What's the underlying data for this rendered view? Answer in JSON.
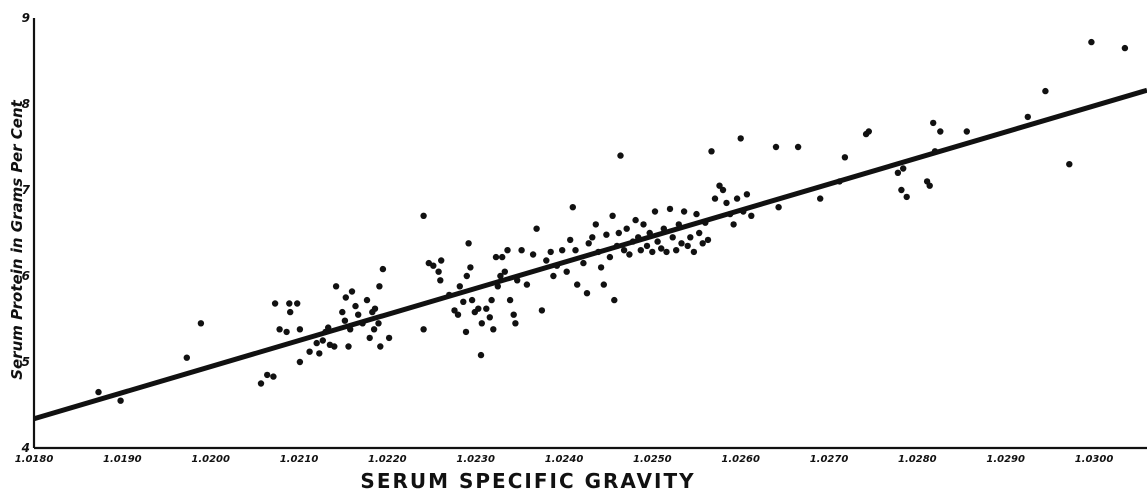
{
  "chart_data": {
    "type": "scatter",
    "title": "",
    "xlabel": "SERUM SPECIFIC GRAVITY",
    "ylabel": "Serum Protein in Grams Per Cent",
    "xlim": [
      1.018,
      1.0306
    ],
    "ylim": [
      4,
      9
    ],
    "x_ticks": [
      "1.0180",
      "1.0190",
      "1.0200",
      "1.0210",
      "1.0220",
      "1.0230",
      "1.0240",
      "1.0250",
      "1.0260",
      "1.0270",
      "1.0280",
      "1.0290",
      "1.0300"
    ],
    "y_ticks": [
      "4",
      "5",
      "6",
      "7",
      "8",
      "9"
    ],
    "grid": false,
    "trend_line": {
      "x": [
        1.018,
        1.0306
      ],
      "y": [
        4.34,
        8.16
      ]
    },
    "points": [
      [
        1.01873,
        4.65
      ],
      [
        1.01898,
        4.55
      ],
      [
        1.01973,
        5.05
      ],
      [
        1.01989,
        5.45
      ],
      [
        1.02057,
        4.75
      ],
      [
        1.02064,
        4.85
      ],
      [
        1.02071,
        4.83
      ],
      [
        1.02073,
        5.68
      ],
      [
        1.02078,
        5.38
      ],
      [
        1.02086,
        5.35
      ],
      [
        1.02089,
        5.68
      ],
      [
        1.0209,
        5.58
      ],
      [
        1.02098,
        5.68
      ],
      [
        1.02101,
        5.38
      ],
      [
        1.02101,
        5.0
      ],
      [
        1.02112,
        5.12
      ],
      [
        1.0212,
        5.22
      ],
      [
        1.02123,
        5.1
      ],
      [
        1.02127,
        5.25
      ],
      [
        1.0213,
        5.35
      ],
      [
        1.02133,
        5.4
      ],
      [
        1.02135,
        5.2
      ],
      [
        1.0214,
        5.18
      ],
      [
        1.02142,
        5.88
      ],
      [
        1.02149,
        5.58
      ],
      [
        1.02152,
        5.48
      ],
      [
        1.02153,
        5.75
      ],
      [
        1.02156,
        5.18
      ],
      [
        1.02158,
        5.38
      ],
      [
        1.0216,
        5.82
      ],
      [
        1.02164,
        5.65
      ],
      [
        1.02167,
        5.55
      ],
      [
        1.02172,
        5.45
      ],
      [
        1.02177,
        5.72
      ],
      [
        1.0218,
        5.28
      ],
      [
        1.02183,
        5.58
      ],
      [
        1.02185,
        5.38
      ],
      [
        1.02186,
        5.62
      ],
      [
        1.0219,
        5.45
      ],
      [
        1.02191,
        5.88
      ],
      [
        1.02192,
        5.18
      ],
      [
        1.02195,
        6.08
      ],
      [
        1.02202,
        5.28
      ],
      [
        1.02241,
        6.7
      ],
      [
        1.02241,
        5.38
      ],
      [
        1.02247,
        6.15
      ],
      [
        1.02252,
        6.12
      ],
      [
        1.02258,
        6.05
      ],
      [
        1.0226,
        5.95
      ],
      [
        1.02261,
        6.18
      ],
      [
        1.0227,
        5.78
      ],
      [
        1.02276,
        5.6
      ],
      [
        1.0228,
        5.55
      ],
      [
        1.02282,
        5.88
      ],
      [
        1.02286,
        5.7
      ],
      [
        1.02289,
        5.35
      ],
      [
        1.0229,
        6.0
      ],
      [
        1.02292,
        6.38
      ],
      [
        1.02294,
        6.1
      ],
      [
        1.02296,
        5.72
      ],
      [
        1.02299,
        5.58
      ],
      [
        1.02303,
        5.62
      ],
      [
        1.02306,
        5.08
      ],
      [
        1.02307,
        5.45
      ],
      [
        1.02312,
        5.62
      ],
      [
        1.02316,
        5.52
      ],
      [
        1.02318,
        5.72
      ],
      [
        1.0232,
        5.38
      ],
      [
        1.02323,
        6.22
      ],
      [
        1.02325,
        5.88
      ],
      [
        1.02328,
        6.0
      ],
      [
        1.0233,
        6.22
      ],
      [
        1.02333,
        6.05
      ],
      [
        1.02336,
        6.3
      ],
      [
        1.02339,
        5.72
      ],
      [
        1.02343,
        5.55
      ],
      [
        1.02345,
        5.45
      ],
      [
        1.02347,
        5.95
      ],
      [
        1.02352,
        6.3
      ],
      [
        1.02358,
        5.9
      ],
      [
        1.02365,
        6.25
      ],
      [
        1.02369,
        6.55
      ],
      [
        1.02375,
        5.6
      ],
      [
        1.0238,
        6.18
      ],
      [
        1.02385,
        6.28
      ],
      [
        1.02388,
        6.0
      ],
      [
        1.02392,
        6.12
      ],
      [
        1.02398,
        6.3
      ],
      [
        1.02403,
        6.05
      ],
      [
        1.02407,
        6.42
      ],
      [
        1.0241,
        6.8
      ],
      [
        1.02413,
        6.3
      ],
      [
        1.02415,
        5.9
      ],
      [
        1.02422,
        6.15
      ],
      [
        1.02426,
        5.8
      ],
      [
        1.02428,
        6.38
      ],
      [
        1.02432,
        6.45
      ],
      [
        1.02436,
        6.6
      ],
      [
        1.02439,
        6.28
      ],
      [
        1.02442,
        6.1
      ],
      [
        1.02445,
        5.9
      ],
      [
        1.02448,
        6.48
      ],
      [
        1.02452,
        6.22
      ],
      [
        1.02455,
        6.7
      ],
      [
        1.02457,
        5.72
      ],
      [
        1.0246,
        6.35
      ],
      [
        1.02462,
        6.5
      ],
      [
        1.02464,
        7.4
      ],
      [
        1.02468,
        6.3
      ],
      [
        1.02471,
        6.55
      ],
      [
        1.02474,
        6.25
      ],
      [
        1.02478,
        6.4
      ],
      [
        1.02481,
        6.65
      ],
      [
        1.02484,
        6.45
      ],
      [
        1.02487,
        6.3
      ],
      [
        1.0249,
        6.6
      ],
      [
        1.02494,
        6.35
      ],
      [
        1.02497,
        6.5
      ],
      [
        1.025,
        6.28
      ],
      [
        1.02503,
        6.75
      ],
      [
        1.02506,
        6.4
      ],
      [
        1.0251,
        6.32
      ],
      [
        1.02513,
        6.55
      ],
      [
        1.02516,
        6.28
      ],
      [
        1.0252,
        6.78
      ],
      [
        1.02523,
        6.45
      ],
      [
        1.02527,
        6.3
      ],
      [
        1.0253,
        6.6
      ],
      [
        1.02533,
        6.38
      ],
      [
        1.02536,
        6.75
      ],
      [
        1.0254,
        6.35
      ],
      [
        1.02543,
        6.45
      ],
      [
        1.02547,
        6.28
      ],
      [
        1.0255,
        6.72
      ],
      [
        1.02553,
        6.5
      ],
      [
        1.02557,
        6.38
      ],
      [
        1.0256,
        6.62
      ],
      [
        1.02563,
        6.42
      ],
      [
        1.02567,
        7.45
      ],
      [
        1.02571,
        6.9
      ],
      [
        1.02576,
        7.05
      ],
      [
        1.0258,
        7.0
      ],
      [
        1.02584,
        6.85
      ],
      [
        1.02588,
        6.72
      ],
      [
        1.02592,
        6.6
      ],
      [
        1.02596,
        6.9
      ],
      [
        1.026,
        7.6
      ],
      [
        1.02603,
        6.75
      ],
      [
        1.02607,
        6.95
      ],
      [
        1.02612,
        6.7
      ],
      [
        1.0264,
        7.5
      ],
      [
        1.02643,
        6.8
      ],
      [
        1.02665,
        7.5
      ],
      [
        1.0269,
        6.9
      ],
      [
        1.02712,
        7.1
      ],
      [
        1.02718,
        7.38
      ],
      [
        1.02742,
        7.65
      ],
      [
        1.02745,
        7.68
      ],
      [
        1.02778,
        7.2
      ],
      [
        1.02782,
        7.0
      ],
      [
        1.02784,
        7.25
      ],
      [
        1.02788,
        6.92
      ],
      [
        1.02811,
        7.1
      ],
      [
        1.02814,
        7.05
      ],
      [
        1.02818,
        7.78
      ],
      [
        1.0282,
        7.45
      ],
      [
        1.02826,
        7.68
      ],
      [
        1.02856,
        7.68
      ],
      [
        1.02925,
        7.85
      ],
      [
        1.02945,
        8.15
      ],
      [
        1.02972,
        7.3
      ],
      [
        1.02997,
        8.72
      ],
      [
        1.03035,
        8.65
      ]
    ]
  }
}
